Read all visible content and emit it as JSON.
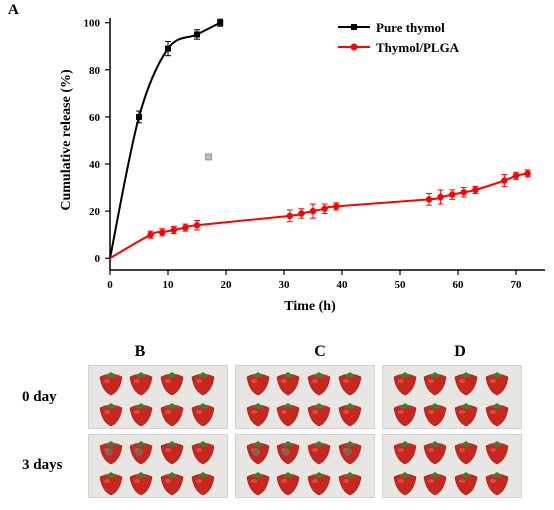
{
  "figure": {
    "panel_a_label": "A",
    "photo_columns": [
      "B",
      "C",
      "D"
    ],
    "photo_rows": [
      "0 day",
      "3 days"
    ]
  },
  "chart_data": {
    "type": "line",
    "title": "",
    "xlabel": "Time (h)",
    "ylabel": "Cumulative release (%)",
    "xlim": [
      0,
      75
    ],
    "ylim": [
      -5,
      102
    ],
    "xticks": [
      0,
      10,
      20,
      30,
      40,
      50,
      60,
      70
    ],
    "yticks": [
      0,
      20,
      40,
      60,
      80,
      100
    ],
    "grid": false,
    "legend_position": "top-right",
    "series": [
      {
        "name": "Pure thymol",
        "color": "#000000",
        "marker": "square",
        "points": [
          {
            "x": 0,
            "y": 0
          },
          {
            "x": 5,
            "y": 60,
            "err": 2.5
          },
          {
            "x": 10,
            "y": 89,
            "err": 3
          },
          {
            "x": 15,
            "y": 95,
            "err": 2
          },
          {
            "x": 19,
            "y": 100,
            "err": 1.5
          }
        ]
      },
      {
        "name": "Thymol/PLGA",
        "color": "#ff0000",
        "marker": "circle",
        "points": [
          {
            "x": 0,
            "y": 0
          },
          {
            "x": 7,
            "y": 10,
            "err": 1.5
          },
          {
            "x": 9,
            "y": 11,
            "err": 1.5
          },
          {
            "x": 11,
            "y": 12,
            "err": 1.5
          },
          {
            "x": 13,
            "y": 13,
            "err": 1.5
          },
          {
            "x": 15,
            "y": 14,
            "err": 2
          },
          {
            "x": 31,
            "y": 18,
            "err": 2.5
          },
          {
            "x": 33,
            "y": 19,
            "err": 2
          },
          {
            "x": 35,
            "y": 20,
            "err": 3
          },
          {
            "x": 37,
            "y": 21,
            "err": 2
          },
          {
            "x": 39,
            "y": 22,
            "err": 1.5
          },
          {
            "x": 55,
            "y": 25,
            "err": 2.5
          },
          {
            "x": 57,
            "y": 26,
            "err": 3
          },
          {
            "x": 59,
            "y": 27,
            "err": 2
          },
          {
            "x": 61,
            "y": 28,
            "err": 2
          },
          {
            "x": 63,
            "y": 29,
            "err": 1.5
          },
          {
            "x": 68,
            "y": 33,
            "err": 2.5
          },
          {
            "x": 70,
            "y": 35,
            "err": 1.5
          },
          {
            "x": 72,
            "y": 36,
            "err": 1.5
          }
        ]
      }
    ],
    "stray_marker": {
      "x": 17,
      "y": 43
    }
  }
}
